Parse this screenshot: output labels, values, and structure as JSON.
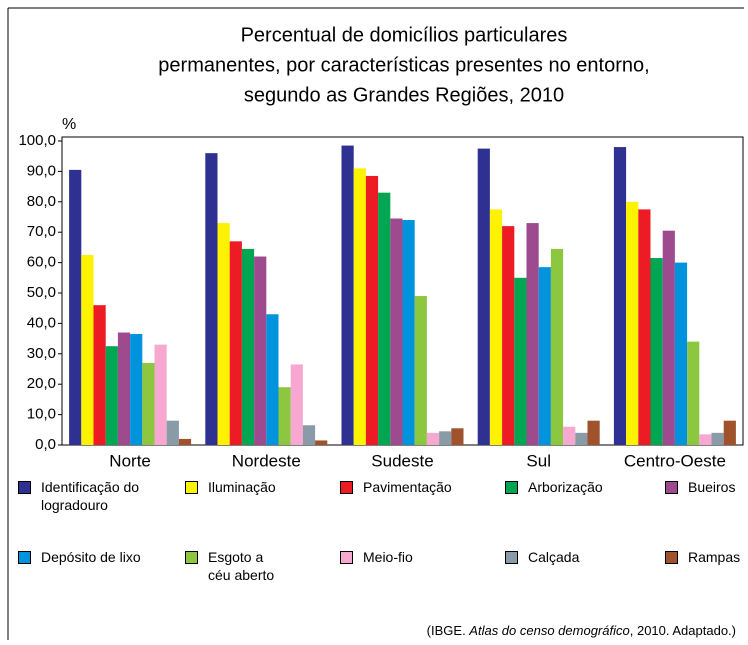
{
  "chart_data": {
    "type": "bar",
    "title": [
      "Percentual de domicílios particulares",
      "permanentes, por características presentes no entorno,",
      "segundo as Grandes Regiões, 2010"
    ],
    "y_label": "%",
    "categories": [
      "Norte",
      "Nordeste",
      "Sudeste",
      "Sul",
      "Centro-Oeste"
    ],
    "series": [
      {
        "name": "Identificação do logradouro",
        "color": "#2e3192",
        "values": [
          90.5,
          96,
          98.5,
          97.5,
          98
        ]
      },
      {
        "name": "Iluminação",
        "color": "#fff200",
        "values": [
          62.5,
          73,
          91,
          77.5,
          80
        ]
      },
      {
        "name": "Pavimentação",
        "color": "#ed1c24",
        "values": [
          46,
          67,
          88.5,
          72,
          77.5
        ]
      },
      {
        "name": "Arborização",
        "color": "#00a651",
        "values": [
          32.5,
          64.5,
          83,
          55,
          61.5
        ]
      },
      {
        "name": "Bueiros",
        "color": "#9e4a8e",
        "values": [
          37,
          62,
          74.5,
          73,
          70.5
        ]
      },
      {
        "name": "Depósito de lixo",
        "color": "#0093dd",
        "values": [
          36.5,
          43,
          74,
          58.5,
          60
        ]
      },
      {
        "name": "Esgoto a céu aberto",
        "color": "#8dc63f",
        "values": [
          27,
          19,
          49,
          64.5,
          34
        ]
      },
      {
        "name": "Meio-fio",
        "color": "#f7a8d0",
        "values": [
          33,
          26.5,
          4,
          6,
          3.5
        ]
      },
      {
        "name": "Calçada",
        "color": "#8a9ba8",
        "values": [
          8,
          6.5,
          4.5,
          4,
          4
        ]
      },
      {
        "name": "Rampas",
        "color": "#a0522d",
        "values": [
          2,
          1.5,
          5.5,
          8,
          8
        ]
      }
    ],
    "ylim": [
      0,
      100
    ],
    "yticks": [
      {
        "value": 0,
        "label": "0,0"
      },
      {
        "value": 10,
        "label": "10,0"
      },
      {
        "value": 20,
        "label": "20,0"
      },
      {
        "value": 30,
        "label": "30,0"
      },
      {
        "value": 40,
        "label": "40,0"
      },
      {
        "value": 50,
        "label": "50,0"
      },
      {
        "value": 60,
        "label": "60,0"
      },
      {
        "value": 70,
        "label": "70,0"
      },
      {
        "value": 80,
        "label": "80,0"
      },
      {
        "value": 90,
        "label": "90,0"
      },
      {
        "value": 100,
        "label": "100,0"
      }
    ],
    "grid": false,
    "source": [
      "(IBGE. ",
      "Atlas do censo demográfico",
      ", 2010. Adaptado.)"
    ]
  }
}
